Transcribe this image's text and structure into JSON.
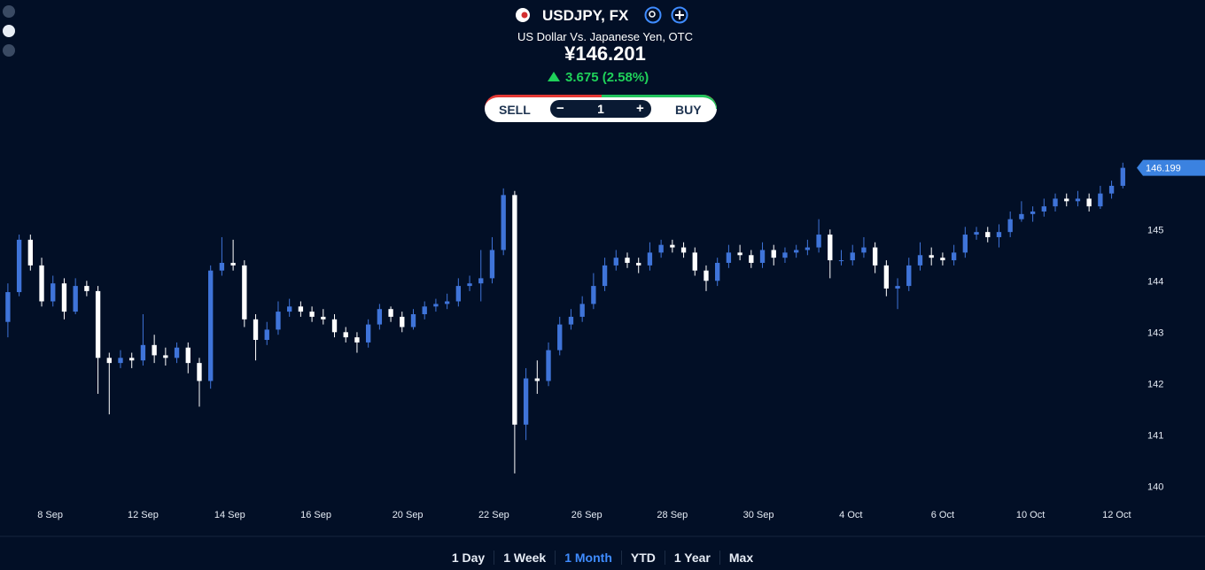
{
  "header": {
    "title": "USDJPY, FX",
    "subtitle": "US Dollar Vs. Japanese Yen, OTC",
    "price": "¥146.201",
    "change": "3.675 (2.58%)"
  },
  "trade": {
    "sell": "SELL",
    "quantity": "1",
    "buy": "BUY"
  },
  "ranges": [
    "1 Day",
    "1 Week",
    "1 Month",
    "YTD",
    "1 Year",
    "Max"
  ],
  "chart_data": {
    "type": "candlestick",
    "up_color": "#3f74d9",
    "down_color": "#ffffff",
    "last_price": 146.199,
    "last_price_color": "#3b82e0",
    "ylim": [
      139.8,
      146.9
    ],
    "yticks": [
      140,
      141,
      142,
      143,
      144,
      145
    ],
    "xlim": [
      -0.7,
      100
    ],
    "xticks": [
      {
        "value": 3.75,
        "label": "8 Sep"
      },
      {
        "value": 12,
        "label": "12 Sep"
      },
      {
        "value": 19.7,
        "label": "14 Sep"
      },
      {
        "value": 27.35,
        "label": "16 Sep"
      },
      {
        "value": 35.5,
        "label": "20 Sep"
      },
      {
        "value": 43.15,
        "label": "22 Sep"
      },
      {
        "value": 51.4,
        "label": "26 Sep"
      },
      {
        "value": 59,
        "label": "28 Sep"
      },
      {
        "value": 66.65,
        "label": "30 Sep"
      },
      {
        "value": 74.85,
        "label": "4 Oct"
      },
      {
        "value": 83,
        "label": "6 Oct"
      },
      {
        "value": 90.8,
        "label": "10 Oct"
      },
      {
        "value": 98.45,
        "label": "12 Oct"
      }
    ],
    "open": [
      143.2,
      143.78,
      144.8,
      144.3,
      143.6,
      143.95,
      143.4,
      143.9,
      143.8,
      142.5,
      142.4,
      142.5,
      142.45,
      142.75,
      142.55,
      142.5,
      142.7,
      142.4,
      142.05,
      144.2,
      144.35,
      144.3,
      143.25,
      142.85,
      143.05,
      143.4,
      143.5,
      143.4,
      143.3,
      143.25,
      143.0,
      142.9,
      142.8,
      143.15,
      143.45,
      143.3,
      143.1,
      143.35,
      143.5,
      143.55,
      143.6,
      143.9,
      143.95,
      144.05,
      144.6,
      145.67,
      141.2,
      142.1,
      142.05,
      142.65,
      143.15,
      143.3,
      143.55,
      143.9,
      144.3,
      144.45,
      144.35,
      144.3,
      144.55,
      144.7,
      144.65,
      144.55,
      144.2,
      144.0,
      144.35,
      144.55,
      144.5,
      144.35,
      144.6,
      144.45,
      144.55,
      144.6,
      144.65,
      144.9,
      144.4,
      144.4,
      144.55,
      144.65,
      144.3,
      143.85,
      143.9,
      144.3,
      144.5,
      144.45,
      144.4,
      144.55,
      144.9,
      144.95,
      144.85,
      144.95,
      145.2,
      145.3,
      145.35,
      145.45,
      145.6,
      145.55,
      145.6,
      145.45,
      145.7,
      145.85
    ],
    "high": [
      143.95,
      144.9,
      144.9,
      144.45,
      144.1,
      144.05,
      144.05,
      144.0,
      143.9,
      142.6,
      142.65,
      142.6,
      143.35,
      142.95,
      142.7,
      142.8,
      142.8,
      142.5,
      144.3,
      144.85,
      144.8,
      144.4,
      143.35,
      143.2,
      143.6,
      143.65,
      143.6,
      143.5,
      143.45,
      143.35,
      143.1,
      143.0,
      143.25,
      143.55,
      143.5,
      143.4,
      143.45,
      143.6,
      143.65,
      143.75,
      144.05,
      144.1,
      144.6,
      144.85,
      145.8,
      145.75,
      142.3,
      142.45,
      142.8,
      143.3,
      143.45,
      143.7,
      144.15,
      144.45,
      144.6,
      144.55,
      144.45,
      144.75,
      144.8,
      144.8,
      144.75,
      144.65,
      144.3,
      144.45,
      144.7,
      144.7,
      144.6,
      144.75,
      144.7,
      144.65,
      144.7,
      144.8,
      145.2,
      145.0,
      144.6,
      144.7,
      144.85,
      144.75,
      144.4,
      144.05,
      144.45,
      144.75,
      144.65,
      144.55,
      144.7,
      145.05,
      145.05,
      145.05,
      145.1,
      145.35,
      145.55,
      145.45,
      145.6,
      145.7,
      145.7,
      145.75,
      145.7,
      145.85,
      145.95,
      146.3
    ],
    "low": [
      142.9,
      143.7,
      144.2,
      143.5,
      143.5,
      143.25,
      143.35,
      143.7,
      141.8,
      141.4,
      142.3,
      142.3,
      142.35,
      142.4,
      142.35,
      142.4,
      142.2,
      141.55,
      141.9,
      144.1,
      144.2,
      143.1,
      142.45,
      142.75,
      142.95,
      143.3,
      143.3,
      143.2,
      143.15,
      142.9,
      142.8,
      142.6,
      142.7,
      143.05,
      143.2,
      143.0,
      143.05,
      143.25,
      143.4,
      143.45,
      143.5,
      143.8,
      143.6,
      143.95,
      144.5,
      140.25,
      140.9,
      141.8,
      141.95,
      142.55,
      143.05,
      143.2,
      143.45,
      143.8,
      144.2,
      144.25,
      144.15,
      144.2,
      144.45,
      144.55,
      144.45,
      144.1,
      143.8,
      143.9,
      144.25,
      144.4,
      144.25,
      144.25,
      144.3,
      144.35,
      144.45,
      144.5,
      144.55,
      144.05,
      144.3,
      144.3,
      144.45,
      144.15,
      143.7,
      143.45,
      143.8,
      144.2,
      144.3,
      144.3,
      144.3,
      144.45,
      144.8,
      144.75,
      144.65,
      144.85,
      145.15,
      145.15,
      145.25,
      145.35,
      145.45,
      145.45,
      145.35,
      145.4,
      145.6,
      145.8
    ],
    "close": [
      143.78,
      144.8,
      144.3,
      143.6,
      143.95,
      143.4,
      143.9,
      143.8,
      142.5,
      142.4,
      142.5,
      142.45,
      142.75,
      142.55,
      142.5,
      142.7,
      142.4,
      142.05,
      144.2,
      144.35,
      144.3,
      143.25,
      142.85,
      143.05,
      143.4,
      143.5,
      143.4,
      143.3,
      143.25,
      143.0,
      142.9,
      142.8,
      143.15,
      143.45,
      143.3,
      143.1,
      143.35,
      143.5,
      143.55,
      143.6,
      143.9,
      143.95,
      144.05,
      144.6,
      145.67,
      141.2,
      142.1,
      142.05,
      142.65,
      143.15,
      143.3,
      143.55,
      143.9,
      144.3,
      144.45,
      144.35,
      144.3,
      144.55,
      144.7,
      144.65,
      144.55,
      144.2,
      144.0,
      144.35,
      144.55,
      144.5,
      144.35,
      144.6,
      144.45,
      144.55,
      144.6,
      144.65,
      144.9,
      144.4,
      144.4,
      144.55,
      144.65,
      144.3,
      143.85,
      143.9,
      144.3,
      144.5,
      144.45,
      144.4,
      144.55,
      144.9,
      144.95,
      144.85,
      144.95,
      145.2,
      145.3,
      145.35,
      145.45,
      145.6,
      145.55,
      145.6,
      145.45,
      145.7,
      145.85,
      146.2
    ]
  }
}
